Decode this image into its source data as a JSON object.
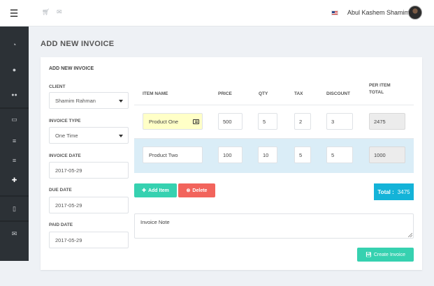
{
  "header": {
    "user_name": "Abul Kashem Shamim",
    "icons": [
      "menu-icon",
      "cart-icon",
      "mail-icon",
      "us-flag-icon",
      "avatar"
    ]
  },
  "sidebar": {
    "items": [
      {
        "icon": "dashboard-icon",
        "glyph": "◔"
      },
      {
        "icon": "user-icon",
        "glyph": "●"
      },
      {
        "icon": "users-icon",
        "glyph": "●●"
      },
      {
        "icon": "credit-card-icon",
        "glyph": "▭"
      },
      {
        "icon": "list-icon",
        "glyph": "≡"
      },
      {
        "icon": "list-icon-2",
        "glyph": "≡"
      },
      {
        "icon": "plus-icon",
        "glyph": "✚"
      },
      {
        "icon": "mobile-icon",
        "glyph": "▯"
      },
      {
        "icon": "envelope-icon",
        "glyph": "✉"
      }
    ]
  },
  "page_title": "ADD NEW INVOICE",
  "card_title": "ADD NEW INVOICE",
  "form": {
    "client_label": "CLIENT",
    "client_value": "Shamim Rahman",
    "invoice_type_label": "INVOICE TYPE",
    "invoice_type_value": "One Time",
    "invoice_date_label": "INVOICE DATE",
    "invoice_date_value": "2017-05-29",
    "due_date_label": "DUE DATE",
    "due_date_value": "2017-05-29",
    "paid_date_label": "PAID DATE",
    "paid_date_value": "2017-05-29"
  },
  "table": {
    "headers": {
      "item_name": "ITEM NAME",
      "price": "PRICE",
      "qty": "QTY",
      "tax": "TAX",
      "discount": "DISCOUNT",
      "per_item_total_1": "PER ITEM",
      "per_item_total_2": "TOTAL"
    },
    "rows": [
      {
        "item_name": "Product One",
        "price": "500",
        "qty": "5",
        "tax": "2",
        "discount": "3",
        "total": "2475"
      },
      {
        "item_name": "Product Two",
        "price": "100",
        "qty": "10",
        "tax": "5",
        "discount": "5",
        "total": "1000"
      }
    ]
  },
  "buttons": {
    "add_item": "Add Item",
    "delete": "Delete",
    "create_invoice": "Create Invoice"
  },
  "total": {
    "label": "Total :",
    "value": "3475"
  },
  "note": {
    "value": "Invoice Note"
  },
  "colors": {
    "sidebar_bg": "#2c3136",
    "accent_green": "#36d1b0",
    "danger_red": "#f2645c",
    "total_blue": "#14b3d8",
    "row_highlight": "#daedf7",
    "item_highlight": "#ffffc7"
  }
}
